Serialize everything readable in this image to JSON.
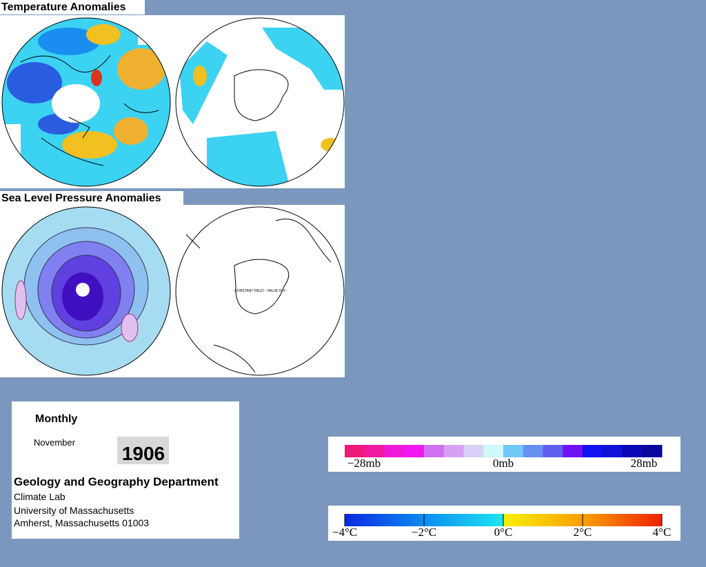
{
  "panels": [
    {
      "title": "Temperature Anomalies"
    },
    {
      "title": "Sea Level Pressure Anomalies",
      "note": "CONSTANT FIELD - VALUE IS 0"
    }
  ],
  "info": {
    "period": "Monthly",
    "month": "November",
    "year": "1906",
    "department": "Geology and Geography Department",
    "lines": [
      "Climate Lab",
      "University of Massachusetts",
      "Amherst, Massachusetts 01003"
    ]
  },
  "legends": {
    "pressure": {
      "labels": [
        "−28mb",
        "0mb",
        "28mb"
      ]
    },
    "temperature": {
      "labels": [
        "−4°C",
        "−2°C",
        "0°C",
        "2°C",
        "4°C"
      ]
    }
  }
}
